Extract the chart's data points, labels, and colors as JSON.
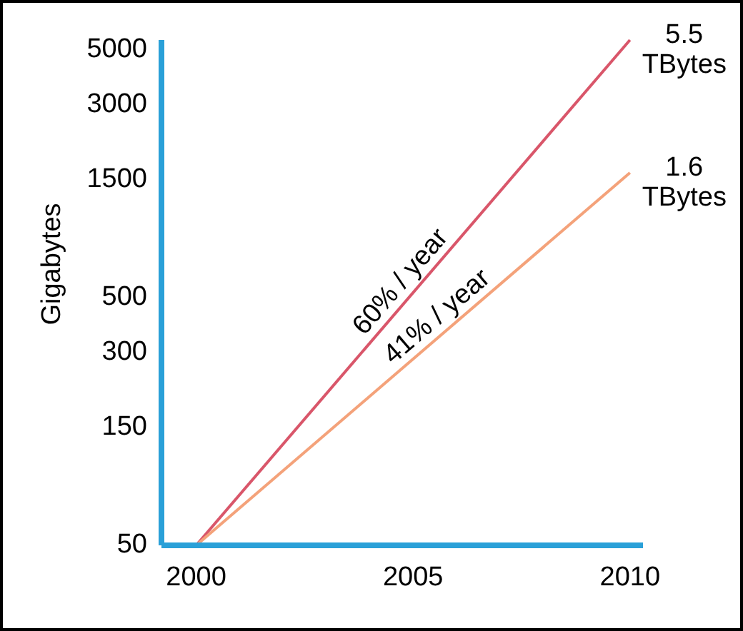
{
  "chart_data": {
    "type": "line",
    "ylabel": "Gigabytes",
    "x": [
      2000,
      2010
    ],
    "xlim": [
      1999.2,
      2010.3
    ],
    "xticks": [
      2000,
      2005,
      2010
    ],
    "ylim": [
      50,
      5500
    ],
    "yticks": [
      50,
      150,
      300,
      500,
      1500,
      3000,
      5000
    ],
    "log": "y",
    "grid": false,
    "marker": "none",
    "line_style": "solid",
    "series": [
      {
        "color": "#d9566a",
        "values": [
          50,
          5500
        ]
      },
      {
        "color": "#f4a27a",
        "values": [
          50,
          1600
        ]
      }
    ],
    "annotations": [
      "60% / year",
      "41% / year",
      {
        "text": "5.5 TBytes",
        "x": 2010,
        "y": 5500
      },
      {
        "text": "1.6 TBytes",
        "x": 2010,
        "y": 1600
      }
    ]
  }
}
